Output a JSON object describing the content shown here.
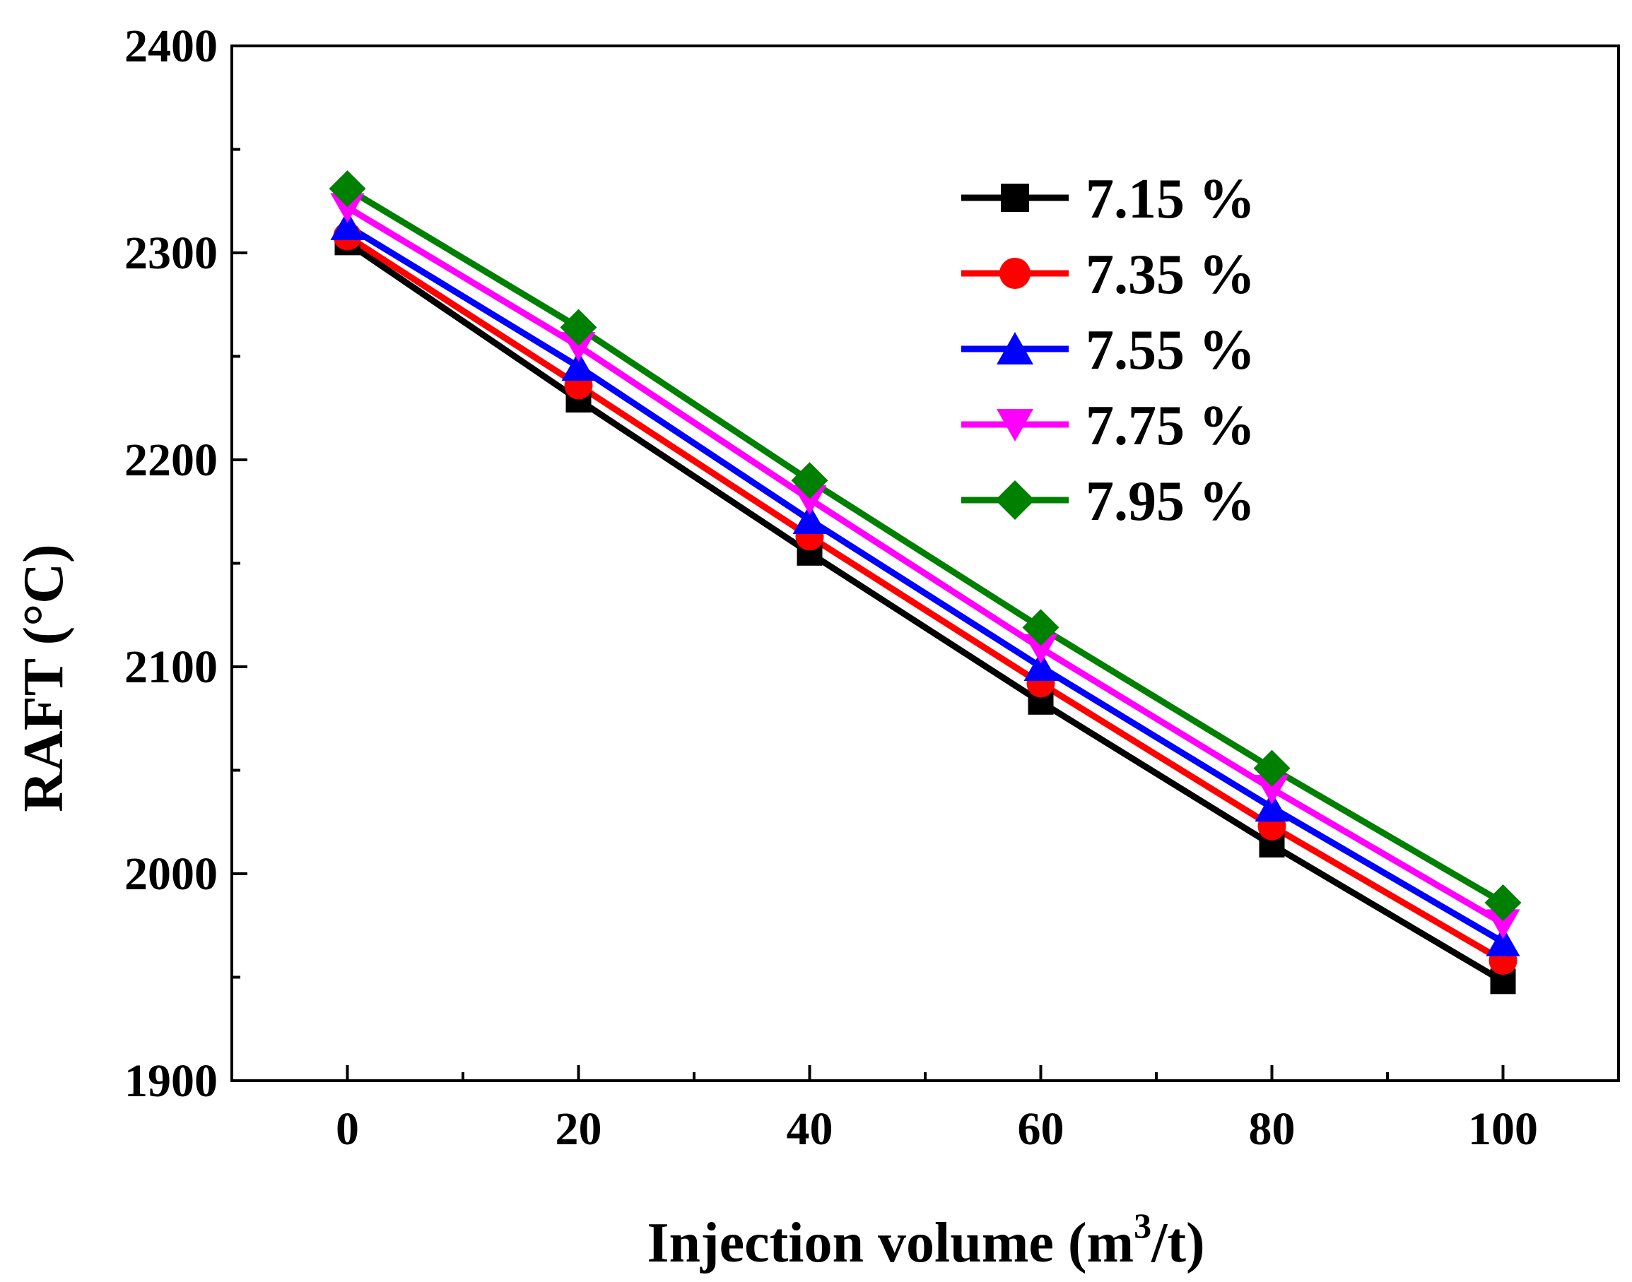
{
  "chart_data": {
    "type": "line",
    "title": "",
    "xlabel": "Injection volume (m",
    "xlabel_sup": "3",
    "xlabel_tail": "/t)",
    "ylabel": "RAFT (°C)",
    "x": [
      0,
      20,
      40,
      60,
      80,
      100
    ],
    "x_tick_labels": [
      "0",
      "20",
      "40",
      "60",
      "80",
      "100"
    ],
    "y_tick_labels": [
      "1900",
      "2000",
      "2100",
      "2200",
      "2300",
      "2400"
    ],
    "xlim": [
      -10,
      110
    ],
    "ylim": [
      1900,
      2400
    ],
    "x_major_ticks": [
      0,
      20,
      40,
      60,
      80,
      100
    ],
    "x_minor_ticks": [
      10,
      30,
      50,
      70,
      90
    ],
    "y_major_ticks": [
      1900,
      2000,
      2100,
      2200,
      2300,
      2400
    ],
    "y_minor_ticks": [
      1950,
      2050,
      2150,
      2250,
      2350
    ],
    "grid": false,
    "legend_position": "top-right",
    "series": [
      {
        "name": "7.15 %",
        "color": "#000000",
        "marker": "square",
        "values": [
          2305,
          2229,
          2155,
          2083,
          2014,
          1948
        ]
      },
      {
        "name": "7.35 %",
        "color": "#ff0000",
        "marker": "circle",
        "values": [
          2308,
          2236,
          2163,
          2092,
          2023,
          1958
        ]
      },
      {
        "name": "7.55 %",
        "color": "#0000ff",
        "marker": "triangle-up",
        "values": [
          2313,
          2245,
          2171,
          2100,
          2032,
          1967
        ]
      },
      {
        "name": "7.75 %",
        "color": "#ff00ff",
        "marker": "triangle-down",
        "values": [
          2322,
          2255,
          2181,
          2109,
          2041,
          1976
        ]
      },
      {
        "name": "7.95 %",
        "color": "#008000",
        "marker": "diamond",
        "values": [
          2331,
          2264,
          2190,
          2119,
          2051,
          1986
        ]
      }
    ]
  }
}
